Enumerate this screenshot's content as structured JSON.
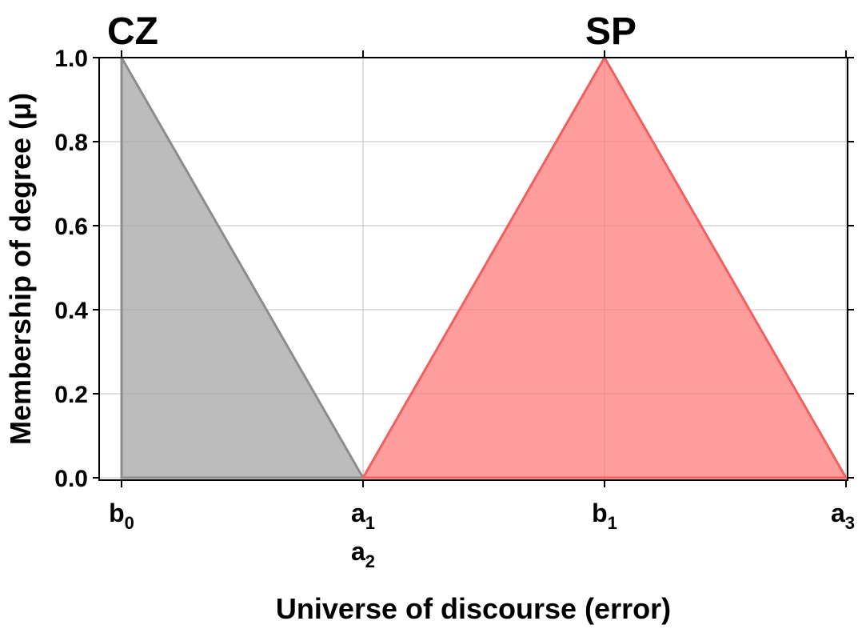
{
  "chart_data": {
    "type": "area",
    "xlabel": "Universe of discourse (error)",
    "ylabel": "Membership of degree (μ)",
    "ylim": [
      0,
      1.0
    ],
    "grid": true,
    "x_ticks": [
      {
        "base": "b",
        "sub": "0",
        "pos": 0
      },
      {
        "base": "a",
        "sub": "1",
        "pos": 1
      },
      {
        "base": "b",
        "sub": "1",
        "pos": 2
      },
      {
        "base": "a",
        "sub": "3",
        "pos": 3
      }
    ],
    "x_ticks_secondary": [
      {
        "base": "a",
        "sub": "2",
        "pos": 1
      }
    ],
    "y_ticks": [
      "0.0",
      "0.2",
      "0.4",
      "0.6",
      "0.8",
      "1.0"
    ],
    "y_tick_values": [
      0,
      0.2,
      0.4,
      0.6,
      0.8,
      1.0
    ],
    "series": [
      {
        "name": "CZ",
        "color": "#a6a6a6",
        "edge_color": "#8c8c8c",
        "points": [
          [
            0,
            0
          ],
          [
            0,
            1.0
          ],
          [
            1,
            0
          ]
        ]
      },
      {
        "name": "SP",
        "color": "#ff7b7b",
        "edge_color": "#f06060",
        "points": [
          [
            1,
            0
          ],
          [
            2,
            1.0
          ],
          [
            3,
            0
          ]
        ]
      }
    ]
  }
}
